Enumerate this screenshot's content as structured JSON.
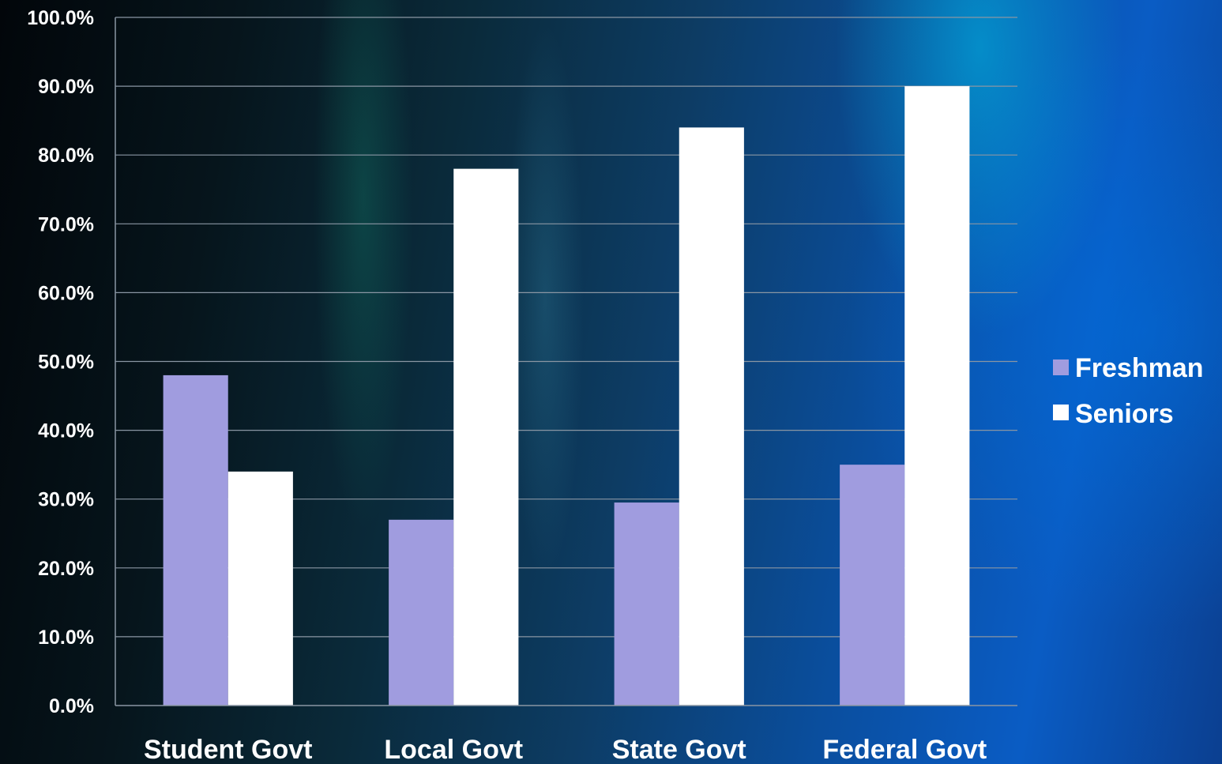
{
  "chart_data": {
    "type": "bar",
    "title": "",
    "xlabel": "",
    "ylabel": "",
    "categories": [
      "Student Govt",
      "Local Govt",
      "State Govt",
      "Federal Govt"
    ],
    "series": [
      {
        "name": "Freshman",
        "color": "#a09cdf",
        "values": [
          48.0,
          27.0,
          29.5,
          35.0
        ]
      },
      {
        "name": "Seniors",
        "color": "#ffffff",
        "values": [
          34.0,
          78.0,
          84.0,
          90.0
        ]
      }
    ],
    "ylim": [
      0,
      100
    ],
    "yticks": [
      "0.0%",
      "10.0%",
      "20.0%",
      "30.0%",
      "40.0%",
      "50.0%",
      "60.0%",
      "70.0%",
      "80.0%",
      "90.0%",
      "100.0%"
    ],
    "grid": true,
    "gridline_color": "#8a96a3",
    "legend_position": "right"
  }
}
